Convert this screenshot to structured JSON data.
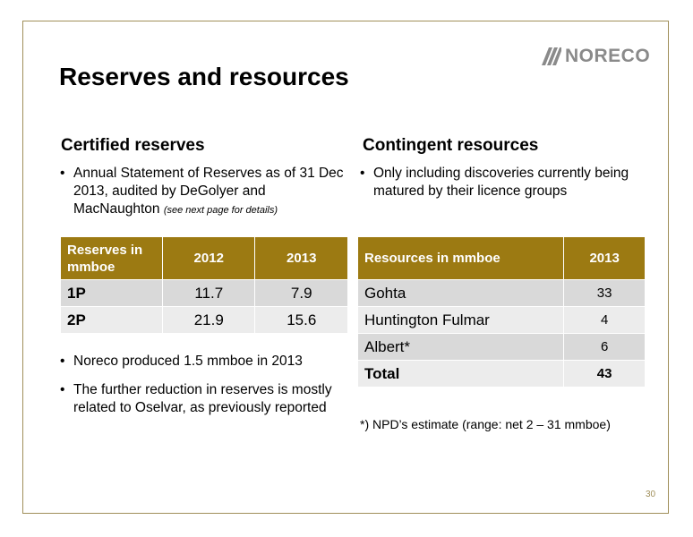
{
  "logo": {
    "text": "NORECO"
  },
  "title": "Reserves and resources",
  "left": {
    "heading": "Certified reserves",
    "bullet1_main": "Annual Statement of Reserves as of 31 Dec 2013, audited by DeGolyer and MacNaughton",
    "bullet1_note": "(see next page for details)",
    "table": {
      "headers": [
        "Reserves in mmboe",
        "2012",
        "2013"
      ],
      "rows": [
        [
          "1P",
          "11.7",
          "7.9"
        ],
        [
          "2P",
          "21.9",
          "15.6"
        ]
      ]
    },
    "bullets_after": [
      "Noreco produced 1.5 mmboe in 2013",
      "The further reduction in reserves is mostly related to Oselvar, as previously reported"
    ]
  },
  "right": {
    "heading": "Contingent resources",
    "bullet1": "Only including discoveries currently being matured by their licence groups",
    "table": {
      "headers": [
        "Resources in mmboe",
        "2013"
      ],
      "rows": [
        [
          "Gohta",
          "33"
        ],
        [
          "Huntington Fulmar",
          "4"
        ],
        [
          "Albert*",
          "6"
        ],
        [
          "Total",
          "43"
        ]
      ]
    },
    "footnote": "*) NPD’s estimate (range: net 2 – 31 mmboe)"
  },
  "page_number": "30",
  "colors": {
    "accent": "#9c7a12",
    "frame": "#a08f5a",
    "row_dark": "#d9d9d9",
    "row_light": "#ececec"
  }
}
